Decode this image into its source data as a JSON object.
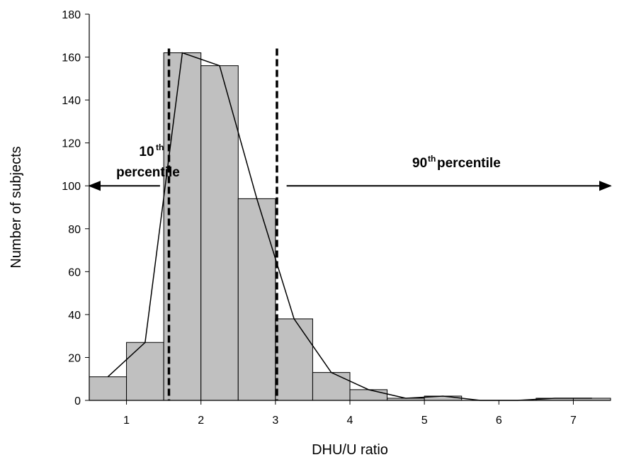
{
  "chart_data": {
    "type": "bar",
    "xlabel": "DHU/U ratio",
    "ylabel": "Number of subjects",
    "xlim": [
      0.5,
      7.5
    ],
    "ylim": [
      0,
      180
    ],
    "x_ticks": [
      1,
      2,
      3,
      4,
      5,
      6,
      7
    ],
    "y_ticks": [
      0,
      20,
      40,
      60,
      80,
      100,
      120,
      140,
      160,
      180
    ],
    "bin_width": 0.5,
    "bins": [
      {
        "start": 0.5,
        "end": 1.0,
        "value": 11
      },
      {
        "start": 1.0,
        "end": 1.5,
        "value": 27
      },
      {
        "start": 1.5,
        "end": 2.0,
        "value": 162
      },
      {
        "start": 2.0,
        "end": 2.5,
        "value": 156
      },
      {
        "start": 2.5,
        "end": 3.0,
        "value": 94
      },
      {
        "start": 3.0,
        "end": 3.5,
        "value": 38
      },
      {
        "start": 3.5,
        "end": 4.0,
        "value": 13
      },
      {
        "start": 4.0,
        "end": 4.5,
        "value": 5
      },
      {
        "start": 4.5,
        "end": 5.0,
        "value": 1
      },
      {
        "start": 5.0,
        "end": 5.5,
        "value": 2
      },
      {
        "start": 5.5,
        "end": 6.0,
        "value": 0
      },
      {
        "start": 6.0,
        "end": 6.5,
        "value": 0
      },
      {
        "start": 6.5,
        "end": 7.0,
        "value": 1
      },
      {
        "start": 7.0,
        "end": 7.5,
        "value": 1
      }
    ],
    "frequency_polygon": {
      "x": [
        0.75,
        1.25,
        1.75,
        2.25,
        2.75,
        3.25,
        3.75,
        4.25,
        4.75,
        5.25,
        5.75,
        6.25,
        6.75,
        7.25
      ],
      "y": [
        11,
        27,
        162,
        156,
        94,
        38,
        13,
        5,
        1,
        2,
        0,
        0,
        1,
        1
      ]
    },
    "reference_lines": [
      {
        "x": 1.57,
        "style": "dashed"
      },
      {
        "x": 3.02,
        "style": "dashed"
      }
    ],
    "annotations": [
      {
        "text_main": "10",
        "text_sup": "th",
        "text_line2": "percentile",
        "arrow_direction": "left",
        "arrow_from": 1.45,
        "arrow_to": 0.5,
        "arrow_y": 100
      },
      {
        "text_main": "90",
        "text_sup": "th",
        "text_rest": " percentile",
        "arrow_direction": "right",
        "arrow_from": 3.15,
        "arrow_to": 7.5,
        "arrow_y": 100
      }
    ],
    "colors": {
      "bar_fill": "#c0c0c0",
      "bar_stroke": "#000000",
      "line": "#000000"
    }
  }
}
